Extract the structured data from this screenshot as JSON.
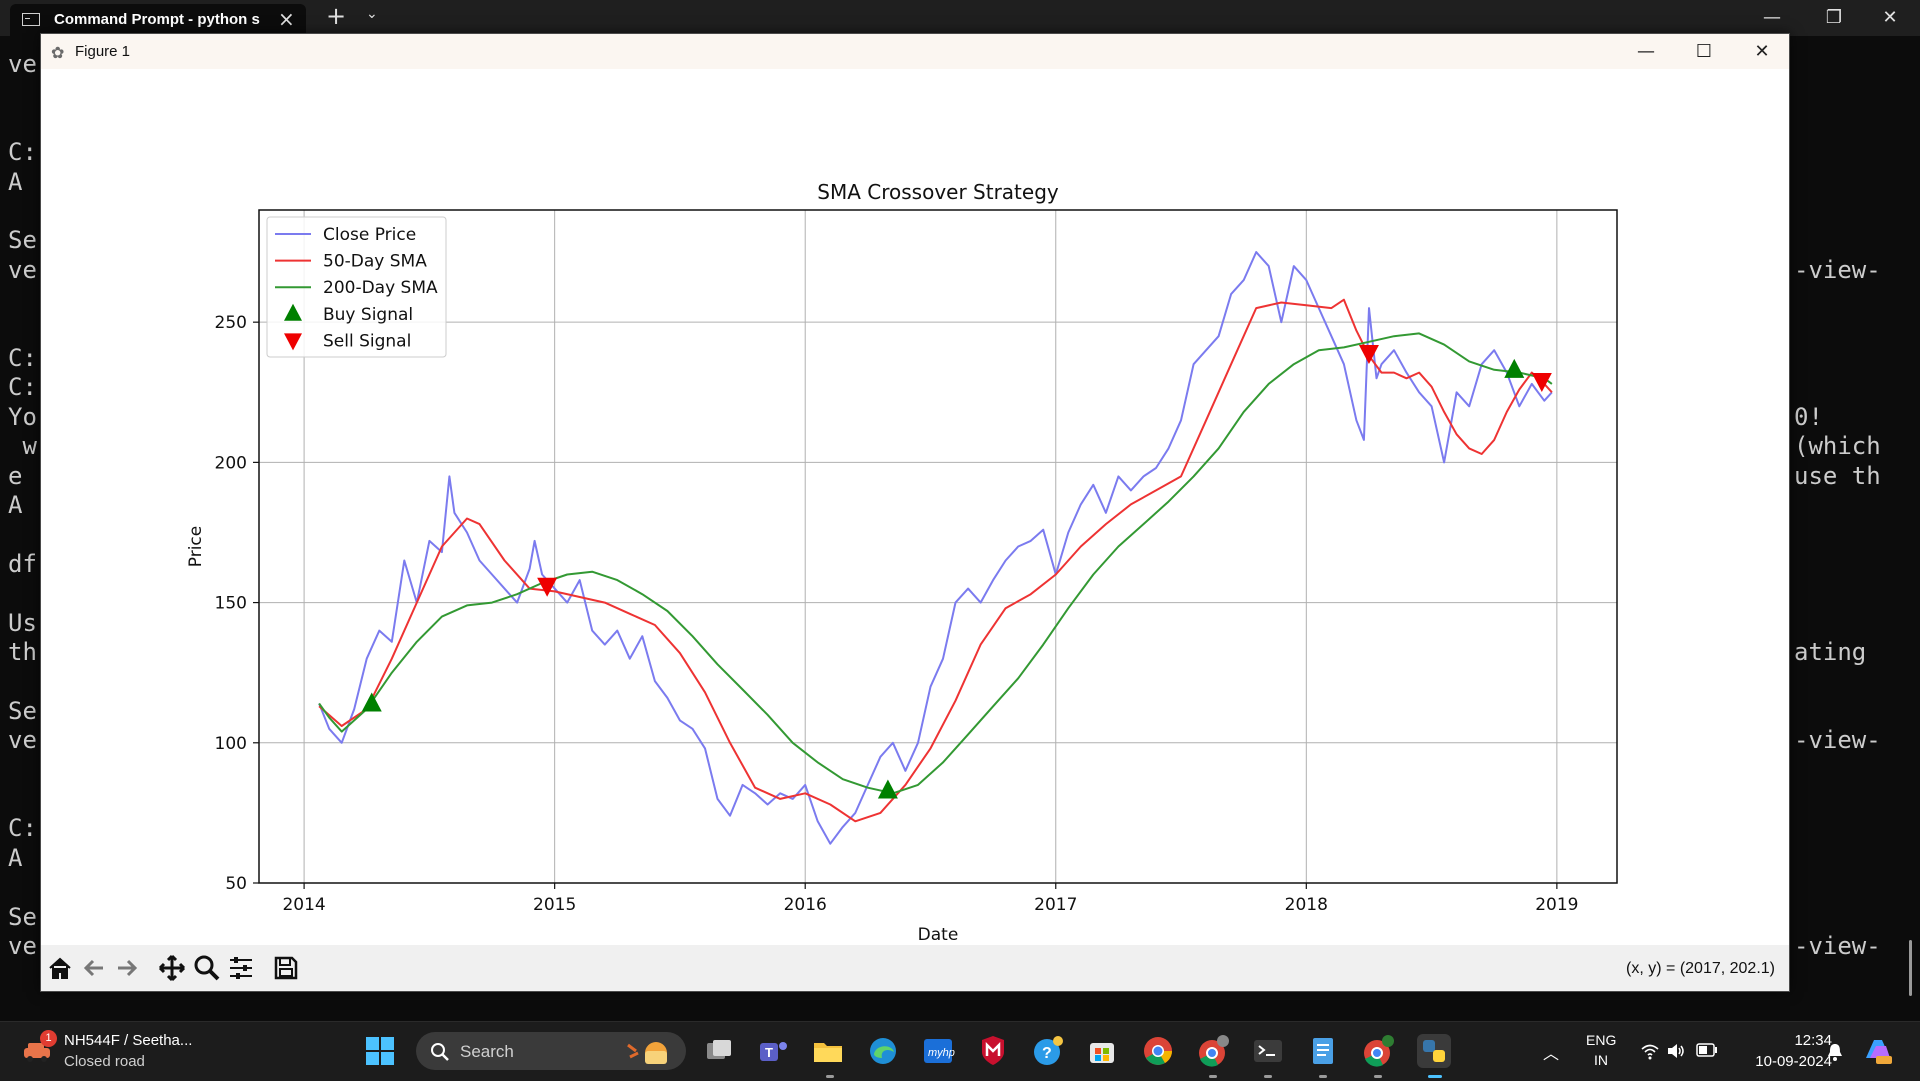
{
  "terminal": {
    "tab_title": "Command Prompt - python s",
    "left_lines": [
      "ve",
      "",
      "",
      "C:",
      "A",
      "",
      "Se",
      "ve",
      "",
      "",
      "C:",
      "C:",
      "Yo",
      " w",
      "e",
      "A",
      "",
      "df",
      "",
      "Us",
      "th",
      "",
      "Se",
      "ve",
      "",
      "",
      "C:",
      "A",
      "",
      "Se",
      "ve"
    ],
    "right_lines": [
      {
        "row": 7,
        "text": "-view-"
      },
      {
        "row": 12,
        "text": "0!"
      },
      {
        "row": 13,
        "text": "(which"
      },
      {
        "row": 14,
        "text": "use th"
      },
      {
        "row": 20,
        "text": "ating"
      },
      {
        "row": 23,
        "text": "-view-"
      },
      {
        "row": 30,
        "text": "-view-"
      }
    ]
  },
  "figure": {
    "window_title": "Figure 1",
    "coord_readout": "(x, y) = (2017, 202.1)",
    "toolbar": [
      "home-icon",
      "back-icon",
      "forward-icon",
      "pan-icon",
      "zoom-icon",
      "configure-icon",
      "save-icon"
    ]
  },
  "chart_data": {
    "type": "line",
    "title": "SMA Crossover Strategy",
    "xlabel": "Date",
    "ylabel": "Price",
    "xlim": [
      2013.82,
      2019.24
    ],
    "ylim": [
      50,
      290
    ],
    "xticks": [
      2014,
      2015,
      2016,
      2017,
      2018,
      2019
    ],
    "yticks": [
      50,
      100,
      150,
      200,
      250
    ],
    "grid": true,
    "legend_position": "upper-left",
    "colors": {
      "close": "#7b7bef",
      "sma50": "#ee3333",
      "sma200": "#339933",
      "buy": "#008000",
      "sell": "#ee0000"
    },
    "series": [
      {
        "name": "Close Price",
        "style": "line",
        "x": [
          2014.06,
          2014.1,
          2014.15,
          2014.2,
          2014.25,
          2014.3,
          2014.35,
          2014.4,
          2014.45,
          2014.5,
          2014.55,
          2014.58,
          2014.6,
          2014.65,
          2014.7,
          2014.75,
          2014.8,
          2014.85,
          2014.9,
          2014.92,
          2014.95,
          2015.0,
          2015.05,
          2015.1,
          2015.15,
          2015.2,
          2015.25,
          2015.3,
          2015.35,
          2015.4,
          2015.45,
          2015.5,
          2015.55,
          2015.6,
          2015.65,
          2015.7,
          2015.75,
          2015.8,
          2015.85,
          2015.9,
          2015.95,
          2016.0,
          2016.05,
          2016.1,
          2016.15,
          2016.2,
          2016.25,
          2016.3,
          2016.35,
          2016.4,
          2016.45,
          2016.5,
          2016.55,
          2016.6,
          2016.65,
          2016.7,
          2016.75,
          2016.8,
          2016.85,
          2016.9,
          2016.95,
          2017.0,
          2017.05,
          2017.1,
          2017.15,
          2017.2,
          2017.25,
          2017.3,
          2017.35,
          2017.4,
          2017.45,
          2017.5,
          2017.55,
          2017.6,
          2017.65,
          2017.7,
          2017.75,
          2017.8,
          2017.85,
          2017.9,
          2017.95,
          2018.0,
          2018.05,
          2018.1,
          2018.15,
          2018.2,
          2018.23,
          2018.25,
          2018.28,
          2018.3,
          2018.35,
          2018.4,
          2018.45,
          2018.5,
          2018.55,
          2018.6,
          2018.65,
          2018.7,
          2018.75,
          2018.8,
          2018.85,
          2018.9,
          2018.95,
          2018.98
        ],
        "y": [
          114,
          105,
          100,
          112,
          130,
          140,
          136,
          165,
          150,
          172,
          168,
          195,
          182,
          175,
          165,
          160,
          155,
          150,
          162,
          172,
          160,
          155,
          150,
          158,
          140,
          135,
          140,
          130,
          138,
          122,
          116,
          108,
          105,
          98,
          80,
          74,
          85,
          82,
          78,
          82,
          80,
          85,
          72,
          64,
          70,
          75,
          85,
          95,
          100,
          90,
          100,
          120,
          130,
          150,
          155,
          150,
          158,
          165,
          170,
          172,
          176,
          160,
          175,
          185,
          192,
          182,
          195,
          190,
          195,
          198,
          205,
          215,
          235,
          240,
          245,
          260,
          265,
          275,
          270,
          250,
          270,
          265,
          255,
          245,
          235,
          215,
          208,
          255,
          230,
          235,
          240,
          232,
          225,
          220,
          200,
          225,
          220,
          235,
          240,
          232,
          220,
          228,
          222,
          225
        ]
      },
      {
        "name": "50-Day SMA",
        "style": "line",
        "x": [
          2014.06,
          2014.15,
          2014.25,
          2014.35,
          2014.45,
          2014.55,
          2014.65,
          2014.7,
          2014.8,
          2014.9,
          2015.0,
          2015.1,
          2015.2,
          2015.3,
          2015.4,
          2015.5,
          2015.6,
          2015.7,
          2015.8,
          2015.9,
          2016.0,
          2016.1,
          2016.2,
          2016.3,
          2016.4,
          2016.5,
          2016.6,
          2016.7,
          2016.8,
          2016.9,
          2017.0,
          2017.1,
          2017.2,
          2017.3,
          2017.4,
          2017.5,
          2017.6,
          2017.7,
          2017.8,
          2017.9,
          2018.0,
          2018.1,
          2018.15,
          2018.2,
          2018.25,
          2018.3,
          2018.35,
          2018.4,
          2018.45,
          2018.5,
          2018.55,
          2018.6,
          2018.65,
          2018.7,
          2018.75,
          2018.8,
          2018.85,
          2018.9,
          2018.95,
          2018.98
        ],
        "y": [
          113,
          106,
          112,
          130,
          150,
          170,
          180,
          178,
          165,
          155,
          154,
          152,
          150,
          146,
          142,
          132,
          118,
          100,
          84,
          80,
          82,
          78,
          72,
          75,
          85,
          98,
          115,
          135,
          148,
          153,
          160,
          170,
          178,
          185,
          190,
          195,
          215,
          235,
          255,
          257,
          256,
          255,
          258,
          247,
          238,
          232,
          232,
          230,
          232,
          227,
          218,
          210,
          205,
          203,
          208,
          218,
          226,
          232,
          228,
          225
        ]
      },
      {
        "name": "200-Day SMA",
        "style": "line",
        "x": [
          2014.06,
          2014.1,
          2014.15,
          2014.25,
          2014.35,
          2014.45,
          2014.55,
          2014.65,
          2014.75,
          2014.85,
          2014.95,
          2015.05,
          2015.15,
          2015.25,
          2015.35,
          2015.45,
          2015.55,
          2015.65,
          2015.75,
          2015.85,
          2015.95,
          2016.05,
          2016.15,
          2016.25,
          2016.35,
          2016.45,
          2016.55,
          2016.65,
          2016.75,
          2016.85,
          2016.95,
          2017.05,
          2017.15,
          2017.25,
          2017.35,
          2017.45,
          2017.55,
          2017.65,
          2017.75,
          2017.85,
          2017.95,
          2018.05,
          2018.15,
          2018.25,
          2018.35,
          2018.45,
          2018.55,
          2018.65,
          2018.75,
          2018.85,
          2018.95,
          2018.98
        ],
        "y": [
          114,
          109,
          104,
          112,
          125,
          136,
          145,
          149,
          150,
          153,
          157,
          160,
          161,
          158,
          153,
          147,
          138,
          128,
          119,
          110,
          100,
          93,
          87,
          84,
          82,
          85,
          93,
          103,
          113,
          123,
          135,
          148,
          160,
          170,
          178,
          186,
          195,
          205,
          218,
          228,
          235,
          240,
          241,
          243,
          245,
          246,
          242,
          236,
          233,
          232,
          230,
          228
        ]
      },
      {
        "name": "Buy Signal",
        "style": "marker-up",
        "x": [
          2014.27,
          2016.33,
          2018.83
        ],
        "y": [
          114,
          83,
          233
        ]
      },
      {
        "name": "Sell Signal",
        "style": "marker-down",
        "x": [
          2014.97,
          2018.25,
          2018.94
        ],
        "y": [
          156,
          239,
          229
        ]
      }
    ]
  },
  "taskbar": {
    "weather_title": "NH544F / Seetha...",
    "weather_sub": "Closed road",
    "weather_badge": "1",
    "search_placeholder": "Search",
    "lang_line1": "ENG",
    "lang_line2": "IN",
    "time": "12:34",
    "date": "10-09-2024"
  }
}
